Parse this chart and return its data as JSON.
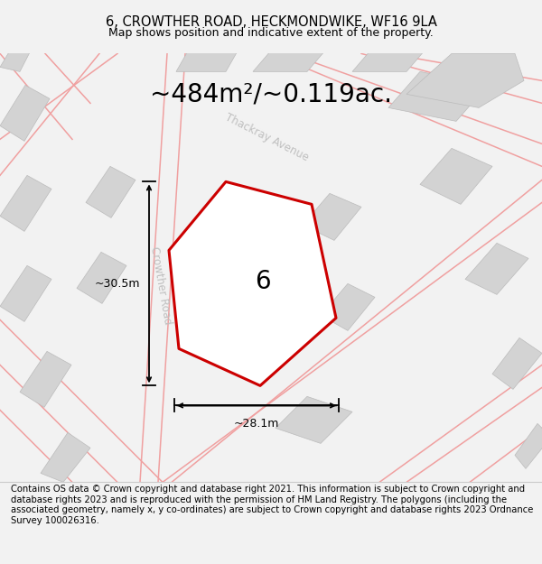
{
  "title": "6, CROWTHER ROAD, HECKMONDWIKE, WF16 9LA",
  "subtitle": "Map shows position and indicative extent of the property.",
  "area_label": "~484m²/~0.119ac.",
  "property_number": "6",
  "dim_horizontal": "~28.1m",
  "dim_vertical": "~30.5m",
  "road_label_1": "Thackray Avenue",
  "road_label_2": "Crowther Road",
  "footer_text": "Contains OS data © Crown copyright and database right 2021. This information is subject to Crown copyright and database rights 2023 and is reproduced with the permission of HM Land Registry. The polygons (including the associated geometry, namely x, y co-ordinates) are subject to Crown copyright and database rights 2023 Ordnance Survey 100026316.",
  "bg_color": "#f2f2f2",
  "map_bg": "#ffffff",
  "road_color": "#f0a0a0",
  "building_color": "#d3d3d3",
  "property_fill": "#ffffff",
  "property_edge": "#cc0000",
  "property_edge_width": 2.2,
  "dim_line_color": "#000000",
  "road_text_color": "#c0c0c0",
  "title_fontsize": 10.5,
  "subtitle_fontsize": 9,
  "area_fontsize": 20,
  "footer_fontsize": 7.2
}
